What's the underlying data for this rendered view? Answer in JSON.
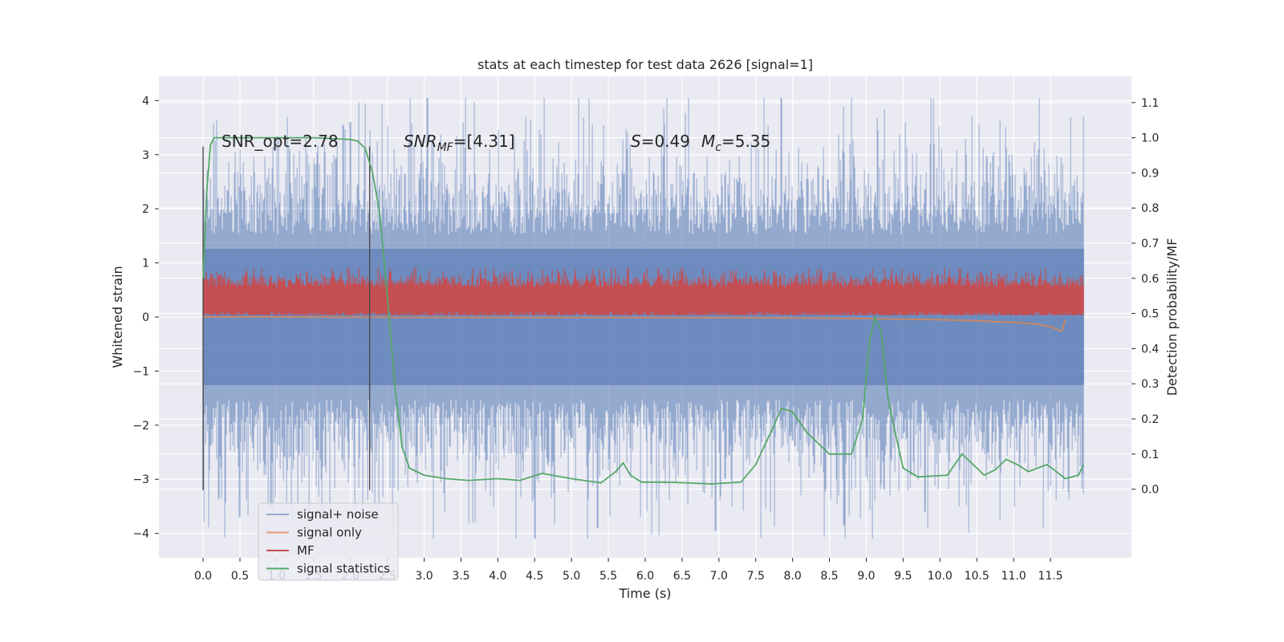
{
  "chart_data": {
    "type": "line",
    "title": "stats at each timestep for test data 2626 [signal=1]",
    "xlabel": "Time (s)",
    "ylabel": "Whitened strain",
    "ylabel_right": "Detection probability/MF",
    "xlim": [
      -0.6,
      12.6
    ],
    "ylim": [
      -4.45,
      4.45
    ],
    "ylim_right": [
      -0.195,
      1.175
    ],
    "x_ticks": [
      "0.0",
      "0.5",
      "1.0",
      "1.5",
      "2.0",
      "2.5",
      "3.0",
      "3.5",
      "4.0",
      "4.5",
      "5.0",
      "5.5",
      "6.0",
      "6.5",
      "7.0",
      "7.5",
      "8.0",
      "8.5",
      "9.0",
      "9.5",
      "10.0",
      "10.5",
      "11.0",
      "11.5"
    ],
    "y_ticks": [
      "−4",
      "−3",
      "−2",
      "−1",
      "0",
      "1",
      "2",
      "3",
      "4"
    ],
    "y_ticks_right": [
      "0.0",
      "0.1",
      "0.2",
      "0.3",
      "0.4",
      "0.5",
      "0.6",
      "0.7",
      "0.8",
      "0.9",
      "1.0",
      "1.1"
    ],
    "grid": true,
    "legend_position": "lower-left",
    "annotations": {
      "snr_opt": "SNR_opt=2.78",
      "snr_mf_symbol": "SNR",
      "snr_mf_sub": "MF",
      "snr_mf_value": "=[4.31]",
      "s_symbol": "S",
      "s_value": "=0.49",
      "mc_symbol": "M",
      "mc_sub": "c",
      "mc_value": "=5.35"
    },
    "vlines": [
      0.0,
      2.26
    ],
    "series": [
      {
        "name": "signal+ noise",
        "color": "#4c72b0",
        "axis": "left",
        "band_x": [
          0.0,
          11.95
        ],
        "band_typical_abs": 1.9,
        "band_max": 4.05,
        "band_min": -4.1
      },
      {
        "name": "signal only",
        "color": "#dd8452",
        "axis": "left",
        "x": [
          0,
          6,
          8,
          9,
          10,
          10.5,
          11,
          11.3,
          11.5,
          11.65,
          11.7
        ],
        "y": [
          0,
          -0.01,
          -0.02,
          -0.03,
          -0.05,
          -0.07,
          -0.1,
          -0.13,
          -0.18,
          -0.26,
          -0.05
        ]
      },
      {
        "name": "MF",
        "color": "#c44e52",
        "axis": "right",
        "band_x": [
          0.0,
          11.95
        ],
        "band_center": 0.54,
        "band_halfwidth": 0.035,
        "band_max": 0.63,
        "band_min": 0.495
      },
      {
        "name": "signal statistics",
        "color": "#55a868",
        "axis": "right",
        "x": [
          0,
          0.05,
          0.1,
          0.15,
          0.2,
          0.3,
          0.5,
          1.0,
          1.5,
          2.0,
          2.1,
          2.2,
          2.3,
          2.4,
          2.5,
          2.6,
          2.7,
          2.8,
          3.0,
          3.3,
          3.6,
          4.0,
          4.3,
          4.6,
          5.0,
          5.4,
          5.6,
          5.7,
          5.8,
          5.95,
          6.3,
          6.9,
          7.3,
          7.5,
          7.7,
          7.85,
          8.0,
          8.2,
          8.5,
          8.8,
          8.95,
          9.05,
          9.12,
          9.2,
          9.3,
          9.5,
          9.7,
          10.1,
          10.3,
          10.45,
          10.6,
          10.75,
          10.9,
          11.05,
          11.2,
          11.45,
          11.55,
          11.7,
          11.88,
          11.95
        ],
        "y": [
          0.6,
          0.85,
          0.98,
          1.0,
          1.0,
          1.0,
          1.0,
          1.0,
          1.0,
          0.995,
          0.99,
          0.97,
          0.9,
          0.78,
          0.55,
          0.3,
          0.12,
          0.06,
          0.04,
          0.03,
          0.025,
          0.03,
          0.025,
          0.045,
          0.03,
          0.018,
          0.05,
          0.075,
          0.04,
          0.02,
          0.02,
          0.015,
          0.02,
          0.07,
          0.16,
          0.23,
          0.22,
          0.16,
          0.1,
          0.1,
          0.2,
          0.43,
          0.49,
          0.45,
          0.25,
          0.06,
          0.035,
          0.04,
          0.1,
          0.07,
          0.04,
          0.055,
          0.085,
          0.07,
          0.05,
          0.07,
          0.055,
          0.03,
          0.04,
          0.07
        ]
      }
    ]
  }
}
